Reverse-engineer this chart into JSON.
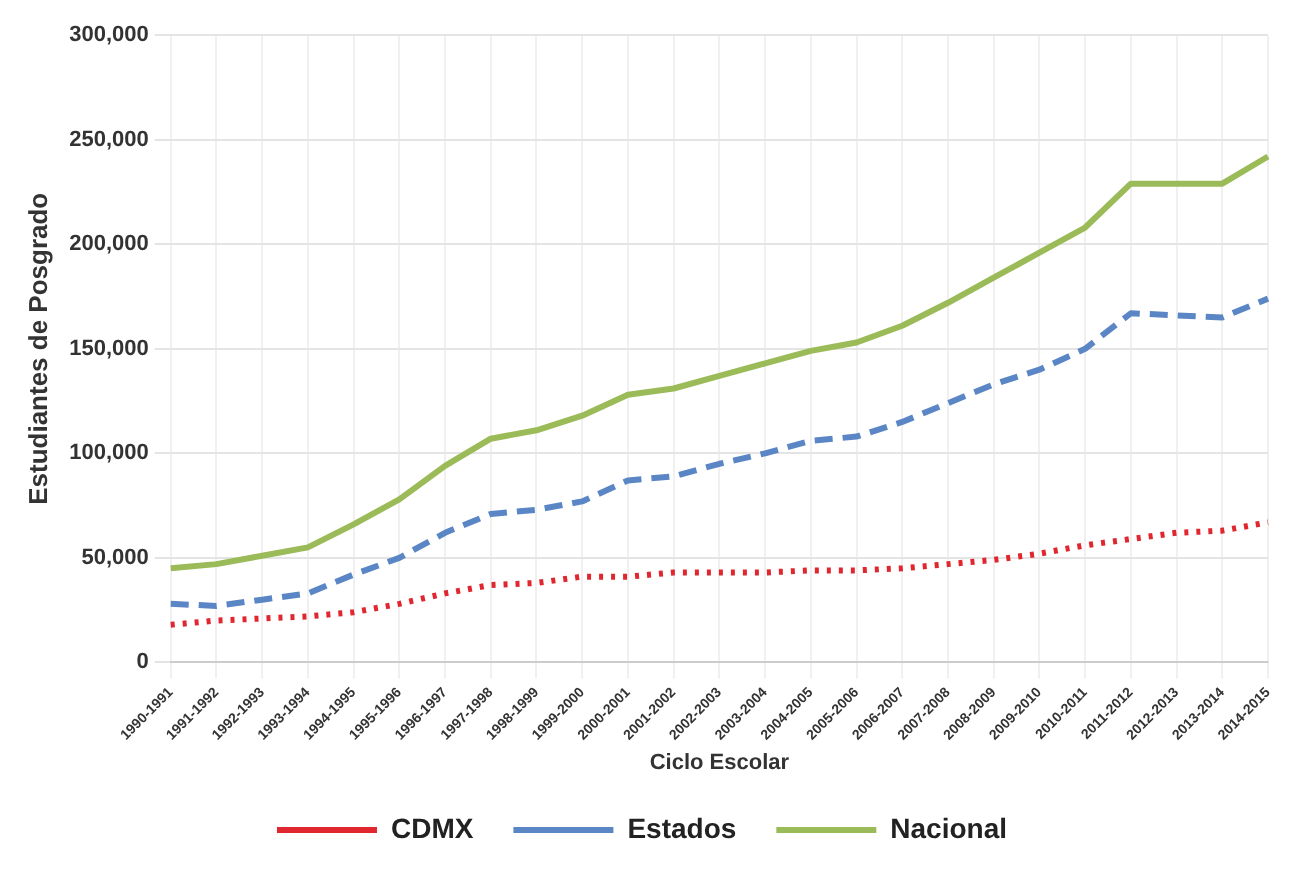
{
  "chart_data": {
    "type": "line",
    "xlabel": "Ciclo Escolar",
    "ylabel": "Estudiantes de Posgrado",
    "categories": [
      "1990-1991",
      "1991-1992",
      "1992-1993",
      "1993-1994",
      "1994-1995",
      "1995-1996",
      "1996-1997",
      "1997-1998",
      "1998-1999",
      "1999-2000",
      "2000-2001",
      "2001-2002",
      "2002-2003",
      "2003-2004",
      "2004-2005",
      "2005-2006",
      "2006-2007",
      "2007-2008",
      "2008-2009",
      "2009-2010",
      "2010-2011",
      "2011-2012",
      "2012-2013",
      "2013-2014",
      "2014-2015"
    ],
    "series": [
      {
        "name": "CDMX",
        "color": "#e0262f",
        "line_style": "dotted",
        "values": [
          18000,
          20000,
          21000,
          22000,
          24000,
          28000,
          33000,
          37000,
          38000,
          41000,
          41000,
          43000,
          43000,
          43000,
          44000,
          44000,
          45000,
          47000,
          49000,
          52000,
          56000,
          59000,
          62000,
          63000,
          67000
        ]
      },
      {
        "name": "Estados",
        "color": "#5b86c5",
        "line_style": "dashed",
        "values": [
          28000,
          27000,
          30000,
          33000,
          42000,
          50000,
          62000,
          71000,
          73000,
          77000,
          87000,
          89000,
          95000,
          100000,
          106000,
          108000,
          115000,
          124000,
          133000,
          140000,
          150000,
          167000,
          166000,
          165000,
          174000
        ]
      },
      {
        "name": "Nacional",
        "color": "#9bbb59",
        "line_style": "solid",
        "values": [
          45000,
          47000,
          51000,
          55000,
          66000,
          78000,
          94000,
          107000,
          111000,
          118000,
          128000,
          131000,
          137000,
          143000,
          149000,
          153000,
          161000,
          172000,
          184000,
          196000,
          208000,
          229000,
          229000,
          229000,
          242000
        ]
      }
    ],
    "ylim": [
      0,
      300000
    ],
    "yticks": [
      0,
      {
        "value": 50000,
        "label": "50,000"
      },
      {
        "value": 100000,
        "label": "100,000"
      },
      {
        "value": 150000,
        "label": "150,000"
      },
      {
        "value": 200000,
        "label": "200,000"
      },
      {
        "value": 250000,
        "label": "250,000"
      },
      {
        "value": 300000,
        "label": "300,000"
      }
    ],
    "grid": true,
    "legend": "bottom",
    "marker": "none"
  }
}
